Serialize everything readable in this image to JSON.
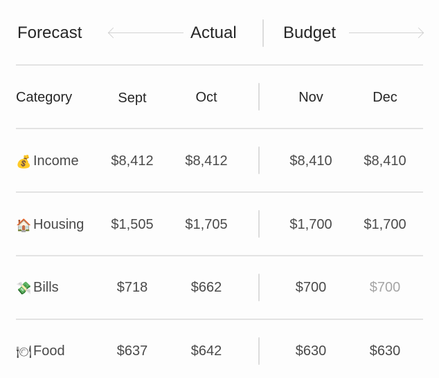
{
  "header": {
    "forecast_label": "Forecast",
    "actual_label": "Actual",
    "budget_label": "Budget"
  },
  "columns": {
    "category": "Category",
    "sept": "Sept",
    "oct": "Oct",
    "nov": "Nov",
    "dec": "Dec"
  },
  "rows": [
    {
      "icon": "money-bag-icon",
      "glyph": "💰",
      "label": "Income",
      "sept": "$8,412",
      "oct": "$8,412",
      "nov": "$8,410",
      "dec": "$8,410"
    },
    {
      "icon": "house-icon",
      "glyph": "🏠",
      "label": "Housing",
      "sept": "$1,505",
      "oct": "$1,705",
      "nov": "$1,700",
      "dec": "$1,700"
    },
    {
      "icon": "money-wings-icon",
      "glyph": "💸",
      "label": "Bills",
      "sept": "$718",
      "oct": "$662",
      "nov": "$700",
      "dec": "$700"
    },
    {
      "icon": "plate-icon",
      "glyph": "🍽",
      "label": "Food",
      "sept": "$637",
      "oct": "$642",
      "nov": "$630",
      "dec": "$630"
    }
  ],
  "colors": {
    "text": "#262626",
    "value": "#4a4a4a",
    "muted_value": "#a5a5a5",
    "divider": "#e3e3e3"
  }
}
